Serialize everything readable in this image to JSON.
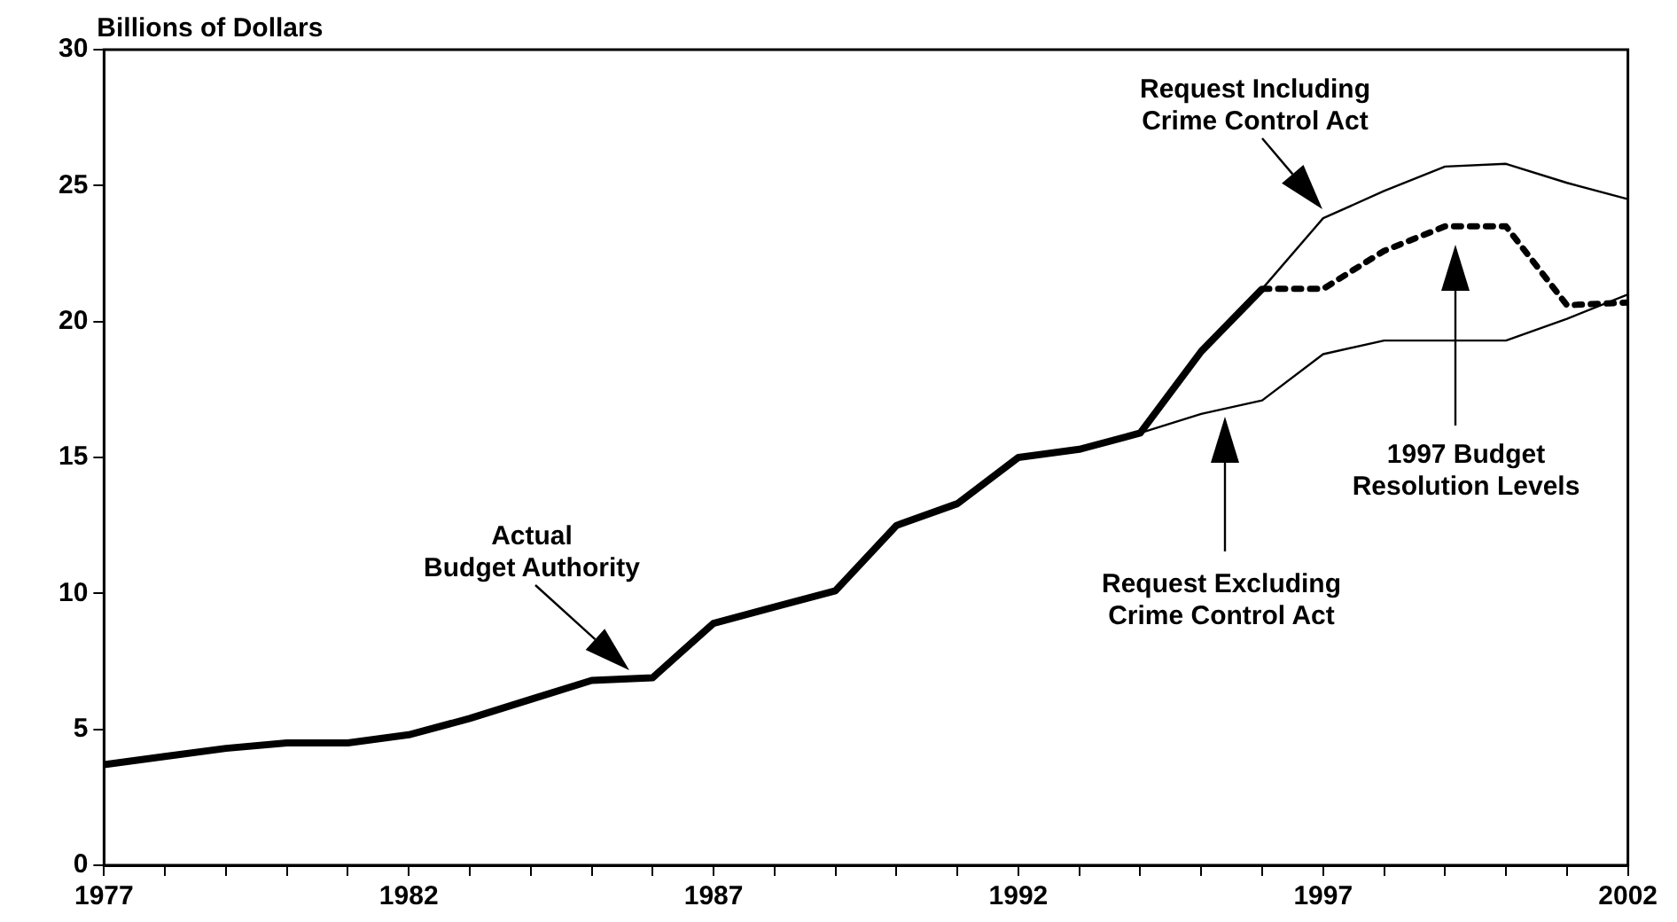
{
  "chart_data": {
    "type": "line",
    "ylabel": "Billions of Dollars",
    "series": [
      {
        "x": [
          1977,
          1978,
          1979,
          1980,
          1981,
          1982,
          1983,
          1984,
          1985,
          1986,
          1987,
          1988,
          1989,
          1990,
          1991,
          1992,
          1993,
          1994,
          1995,
          1996
        ],
        "values": [
          3.7,
          4.0,
          4.3,
          4.5,
          4.5,
          4.8,
          5.4,
          6.1,
          6.8,
          6.9,
          8.9,
          9.5,
          10.1,
          12.5,
          13.3,
          15.0,
          15.3,
          15.9,
          18.9,
          21.2
        ],
        "color": "#000000",
        "line_style": "solid"
      },
      {
        "x": [
          1996,
          1997,
          1998,
          1999,
          2000,
          2001,
          2002
        ],
        "values": [
          21.2,
          23.8,
          24.8,
          25.7,
          25.8,
          25.1,
          24.5
        ],
        "color": "#000000",
        "line_style": "solid"
      },
      {
        "x": [
          1994,
          1995,
          1996,
          1997,
          1998,
          1999,
          2000,
          2001,
          2002
        ],
        "values": [
          15.9,
          16.6,
          17.1,
          18.8,
          19.3,
          19.3,
          19.3,
          20.1,
          21.0
        ],
        "color": "#000000",
        "line_style": "solid"
      },
      {
        "x": [
          1996,
          1997,
          1998,
          1999,
          2000,
          2001,
          2002
        ],
        "values": [
          21.2,
          21.2,
          22.6,
          23.5,
          23.5,
          20.6,
          20.7
        ],
        "color": "#000000",
        "line_style": "dotted"
      }
    ],
    "xlim": [
      1977,
      2002
    ],
    "xticks": [
      1977,
      {
        "value": 1978,
        "label": null
      },
      {
        "value": 1979,
        "label": null
      },
      {
        "value": 1980,
        "label": null
      },
      {
        "value": 1981,
        "label": null
      },
      1982,
      {
        "value": 1983,
        "label": null
      },
      {
        "value": 1984,
        "label": null
      },
      {
        "value": 1985,
        "label": null
      },
      {
        "value": 1986,
        "label": null
      },
      1987,
      {
        "value": 1988,
        "label": null
      },
      {
        "value": 1989,
        "label": null
      },
      {
        "value": 1990,
        "label": null
      },
      {
        "value": 1991,
        "label": null
      },
      1992,
      {
        "value": 1993,
        "label": null
      },
      {
        "value": 1994,
        "label": null
      },
      {
        "value": 1995,
        "label": null
      },
      {
        "value": 1996,
        "label": null
      },
      1997,
      {
        "value": 1998,
        "label": null
      },
      {
        "value": 1999,
        "label": null
      },
      {
        "value": 2000,
        "label": null
      },
      {
        "value": 2001,
        "label": null
      },
      2002
    ],
    "ylim": [
      0,
      30
    ],
    "yticks": [
      0,
      5,
      10,
      15,
      20,
      25,
      30
    ],
    "grid": false,
    "legend": false,
    "marker": "none",
    "annotations": [
      "Actual\nBudget Authority",
      "Request Including\nCrime Control Act",
      "Request Excluding\nCrime Control Act",
      "1997 Budget\nResolution Levels"
    ]
  }
}
